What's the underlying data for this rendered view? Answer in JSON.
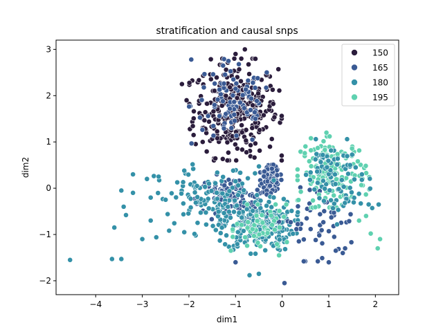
{
  "chart_data": {
    "type": "scatter",
    "title": "stratification and causal snps",
    "xlabel": "dim1",
    "ylabel": "dim2",
    "xlim": [
      -4.85,
      2.5
    ],
    "ylim": [
      -2.3,
      3.2
    ],
    "xticks": [
      -4,
      -3,
      -2,
      -1,
      0,
      1,
      2
    ],
    "yticks": [
      -2,
      -1,
      0,
      1,
      2,
      3
    ],
    "xtick_labels": [
      "−4",
      "−3",
      "−2",
      "−1",
      "0",
      "1",
      "2"
    ],
    "ytick_labels": [
      "−2",
      "−1",
      "0",
      "1",
      "2",
      "3"
    ],
    "grid": false,
    "legend": {
      "position": "top-right"
    },
    "series": [
      {
        "name": "150",
        "color": "#2b1d3c"
      },
      {
        "name": "165",
        "color": "#3a5a94"
      },
      {
        "name": "180",
        "color": "#3491a8"
      },
      {
        "name": "195",
        "color": "#5fd1b0"
      }
    ],
    "clusters": [
      {
        "series": "150",
        "center": [
          -1.0,
          1.7
        ],
        "spread": [
          0.45,
          0.5
        ],
        "count": 320
      },
      {
        "series": "165",
        "center": [
          -1.05,
          1.8
        ],
        "spread": [
          0.45,
          0.45
        ],
        "count": 90
      },
      {
        "series": "165",
        "center": [
          -0.25,
          0.2
        ],
        "spread": [
          0.1,
          0.14
        ],
        "count": 110
      },
      {
        "series": "165",
        "center": [
          -1.1,
          -0.25
        ],
        "spread": [
          0.35,
          0.25
        ],
        "count": 120
      },
      {
        "series": "180",
        "center": [
          -0.5,
          -0.8
        ],
        "spread": [
          0.38,
          0.28
        ],
        "count": 220
      },
      {
        "series": "180",
        "center": [
          -1.5,
          -0.25
        ],
        "spread": [
          0.6,
          0.35
        ],
        "count": 120
      },
      {
        "series": "165",
        "center": [
          0.7,
          -0.7
        ],
        "spread": [
          0.45,
          0.4
        ],
        "count": 50
      },
      {
        "series": "195",
        "center": [
          1.1,
          0.35
        ],
        "spread": [
          0.35,
          0.35
        ],
        "count": 160
      },
      {
        "series": "180",
        "center": [
          1.05,
          0.4
        ],
        "spread": [
          0.3,
          0.3
        ],
        "count": 60
      },
      {
        "series": "195",
        "center": [
          -0.4,
          -0.9
        ],
        "spread": [
          0.3,
          0.25
        ],
        "count": 50
      },
      {
        "series": "180",
        "center": [
          1.3,
          -0.25
        ],
        "spread": [
          0.35,
          0.25
        ],
        "count": 30
      }
    ],
    "points": [
      {
        "series": "180",
        "x": -4.55,
        "y": -1.55
      },
      {
        "series": "180",
        "x": -3.65,
        "y": -1.53
      },
      {
        "series": "180",
        "x": -3.45,
        "y": -1.53
      },
      {
        "series": "180",
        "x": -3.6,
        "y": -0.85
      },
      {
        "series": "180",
        "x": -3.4,
        "y": -0.4
      },
      {
        "series": "180",
        "x": -3.35,
        "y": -0.58
      },
      {
        "series": "180",
        "x": -3.45,
        "y": -0.05
      },
      {
        "series": "180",
        "x": -3.2,
        "y": -0.1
      },
      {
        "series": "180",
        "x": -3.0,
        "y": -1.1
      },
      {
        "series": "180",
        "x": -2.7,
        "y": -1.06
      },
      {
        "series": "180",
        "x": -3.2,
        "y": 0.3
      },
      {
        "series": "180",
        "x": -2.9,
        "y": 0.2
      },
      {
        "series": "180",
        "x": -2.65,
        "y": 0.25
      },
      {
        "series": "180",
        "x": -2.5,
        "y": -0.25
      },
      {
        "series": "180",
        "x": -2.1,
        "y": -0.95
      },
      {
        "series": "165",
        "x": -1.95,
        "y": 2.78
      },
      {
        "series": "150",
        "x": -2.15,
        "y": 2.25
      },
      {
        "series": "150",
        "x": -2.05,
        "y": 1.9
      },
      {
        "series": "150",
        "x": -1.9,
        "y": 1.15
      },
      {
        "series": "150",
        "x": -1.0,
        "y": 2.9
      },
      {
        "series": "150",
        "x": -0.8,
        "y": 3.0
      },
      {
        "series": "165",
        "x": 0.05,
        "y": -2.05
      },
      {
        "series": "180",
        "x": -0.7,
        "y": -1.88
      },
      {
        "series": "180",
        "x": -0.5,
        "y": -1.85
      },
      {
        "series": "165",
        "x": -1.0,
        "y": -1.6
      },
      {
        "series": "165",
        "x": 1.0,
        "y": -1.6
      },
      {
        "series": "165",
        "x": 1.15,
        "y": -1.35
      },
      {
        "series": "165",
        "x": 1.3,
        "y": -1.4
      },
      {
        "series": "165",
        "x": 1.35,
        "y": -1.3
      },
      {
        "series": "195",
        "x": 1.9,
        "y": -0.98
      },
      {
        "series": "195",
        "x": 2.1,
        "y": -1.1
      },
      {
        "series": "195",
        "x": 2.05,
        "y": -1.3
      },
      {
        "series": "195",
        "x": 1.8,
        "y": -0.6
      },
      {
        "series": "195",
        "x": 1.65,
        "y": -0.7
      },
      {
        "series": "195",
        "x": 0.95,
        "y": 1.2
      },
      {
        "series": "180",
        "x": -1.05,
        "y": 0.38
      },
      {
        "series": "180",
        "x": -1.0,
        "y": 0.15
      },
      {
        "series": "180",
        "x": -2.1,
        "y": 0.38
      },
      {
        "series": "195",
        "x": -1.1,
        "y": -1.35
      }
    ]
  }
}
